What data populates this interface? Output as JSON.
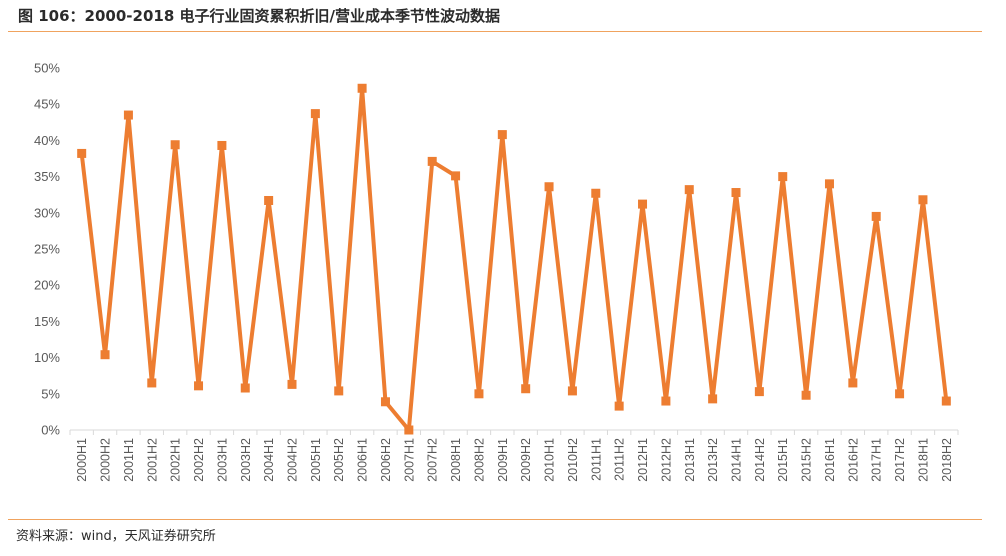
{
  "header": {
    "title": "图 106：2000-2018 电子行业固资累积折旧/营业成本季节性波动数据"
  },
  "footer": {
    "source": "资料来源：wind，天风证券研究所"
  },
  "colors": {
    "series": "#ed7d31",
    "rule": "#f0a35e",
    "axis": "#d9d9d9",
    "text": "#595959"
  },
  "chart_data": {
    "type": "line",
    "title": "",
    "xlabel": "",
    "ylabel": "",
    "ylim": [
      0,
      0.5
    ],
    "yticks": [
      "0%",
      "5%",
      "10%",
      "15%",
      "20%",
      "25%",
      "30%",
      "35%",
      "40%",
      "45%",
      "50%"
    ],
    "grid": false,
    "legend": "none",
    "marker": "square",
    "categories": [
      "2000H1",
      "2000H2",
      "2001H1",
      "2001H2",
      "2002H1",
      "2002H2",
      "2003H1",
      "2003H2",
      "2004H1",
      "2004H2",
      "2005H1",
      "2005H2",
      "2006H1",
      "2006H2",
      "2007H1",
      "2007H2",
      "2008H1",
      "2008H2",
      "2009H1",
      "2009H2",
      "2010H1",
      "2010H2",
      "2011H1",
      "2011H2",
      "2012H1",
      "2012H2",
      "2013H1",
      "2013H2",
      "2014H1",
      "2014H2",
      "2015H1",
      "2015H2",
      "2016H1",
      "2016H2",
      "2017H1",
      "2017H2",
      "2018H1",
      "2018H2"
    ],
    "series": [
      {
        "values": [
          0.382,
          0.104,
          0.435,
          0.065,
          0.394,
          0.061,
          0.393,
          0.058,
          0.317,
          0.063,
          0.437,
          0.054,
          0.472,
          0.039,
          0.0,
          0.371,
          0.351,
          0.05,
          0.408,
          0.057,
          0.336,
          0.054,
          0.327,
          0.033,
          0.312,
          0.04,
          0.332,
          0.043,
          0.328,
          0.053,
          0.35,
          0.048,
          0.34,
          0.065,
          0.295,
          0.05,
          0.318,
          0.04
        ]
      }
    ]
  }
}
